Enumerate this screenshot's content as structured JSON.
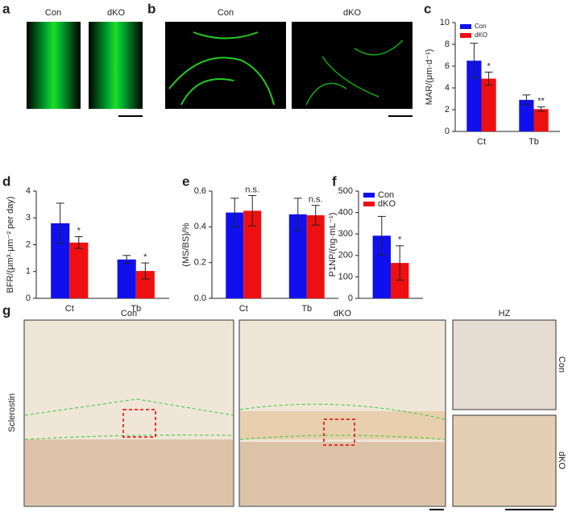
{
  "panel_letters": [
    "a",
    "b",
    "c",
    "d",
    "e",
    "f",
    "g"
  ],
  "image_labels": {
    "a": [
      "Con",
      "dKO"
    ],
    "b": [
      "Con",
      "dKO"
    ],
    "g": [
      "Con",
      "dKO",
      "HZ"
    ],
    "g_side": [
      "Con",
      "dKO"
    ],
    "g_row": "Sclerostin"
  },
  "chart_data": [
    {
      "type": "bar",
      "ylabel": "MAR/(μm·d⁻¹)",
      "categories": [
        "Ct",
        "Tb"
      ],
      "ylim": [
        0,
        10
      ],
      "yticks": [
        0,
        2,
        4,
        6,
        8,
        10
      ],
      "legend": "upper left",
      "series": [
        {
          "name": "Con",
          "color": "#1010ee",
          "values": [
            6.5,
            2.9
          ],
          "errors": [
            1.6,
            0.45
          ]
        },
        {
          "name": "dKO",
          "color": "#ee1010",
          "values": [
            4.85,
            2.05
          ],
          "errors": [
            0.6,
            0.2
          ],
          "significance": [
            "*",
            "**"
          ]
        }
      ]
    },
    {
      "type": "bar",
      "ylabel": "BFR/(μm³·μm⁻² per day)",
      "categories": [
        "Ct",
        "Tb"
      ],
      "ylim": [
        0,
        4
      ],
      "yticks": [
        0,
        1,
        2,
        3,
        4
      ],
      "series": [
        {
          "color": "#1010ee",
          "values": [
            2.8,
            1.45
          ],
          "errors": [
            0.75,
            0.15
          ]
        },
        {
          "color": "#ee1010",
          "values": [
            2.08,
            1.02
          ],
          "errors": [
            0.22,
            0.3
          ],
          "significance": [
            "*",
            "*"
          ]
        }
      ]
    },
    {
      "type": "bar",
      "ylabel": "(MS/BS)/%",
      "categories": [
        "Ct",
        "Tb"
      ],
      "ylim": [
        0,
        0.6
      ],
      "yticks": [
        {
          "value": 0,
          "label": "0.0"
        },
        0.2,
        0.4,
        0.6
      ],
      "series": [
        {
          "color": "#1010ee",
          "values": [
            0.48,
            0.47
          ],
          "errors": [
            0.08,
            0.09
          ]
        },
        {
          "color": "#ee1010",
          "values": [
            0.49,
            0.465
          ],
          "errors": [
            0.085,
            0.055
          ],
          "significance": [
            "n.s.",
            "n.s."
          ]
        }
      ]
    },
    {
      "type": "bar",
      "ylabel": "P1NP/(ng·mL⁻¹)",
      "categories": [
        null
      ],
      "ylim": [
        0,
        500
      ],
      "yticks": [
        0,
        100,
        200,
        300,
        400,
        500
      ],
      "legend": "upper left",
      "series": [
        {
          "name": "Con",
          "color": "#1010ee",
          "values": [
            292
          ],
          "errors": [
            90
          ]
        },
        {
          "name": "dKO",
          "color": "#ee1010",
          "values": [
            165
          ],
          "errors": [
            80
          ],
          "significance": [
            "*"
          ]
        }
      ]
    }
  ]
}
